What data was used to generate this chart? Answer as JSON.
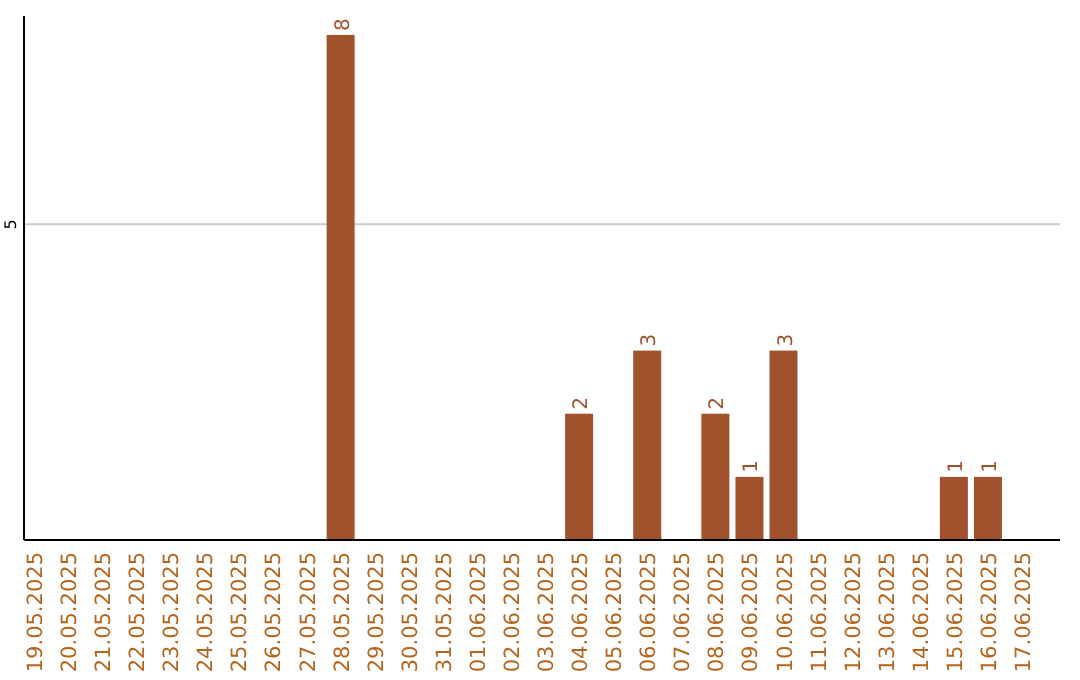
{
  "chart_data": {
    "type": "bar",
    "categories": [
      "19.05.2025",
      "20.05.2025",
      "21.05.2025",
      "22.05.2025",
      "23.05.2025",
      "24.05.2025",
      "25.05.2025",
      "26.05.2025",
      "27.05.2025",
      "28.05.2025",
      "29.05.2025",
      "30.05.2025",
      "31.05.2025",
      "01.06.2025",
      "02.06.2025",
      "03.06.2025",
      "04.06.2025",
      "05.06.2025",
      "06.06.2025",
      "07.06.2025",
      "08.06.2025",
      "09.06.2025",
      "10.06.2025",
      "11.06.2025",
      "12.06.2025",
      "13.06.2025",
      "14.06.2025",
      "15.06.2025",
      "16.06.2025",
      "17.06.2025"
    ],
    "values": [
      0,
      0,
      0,
      0,
      0,
      0,
      0,
      0,
      0,
      8,
      0,
      0,
      0,
      0,
      0,
      0,
      2,
      0,
      3,
      0,
      2,
      1,
      3,
      0,
      0,
      0,
      0,
      1,
      1,
      0
    ],
    "value_labels": [
      null,
      null,
      null,
      null,
      null,
      null,
      null,
      null,
      null,
      "8",
      null,
      null,
      null,
      null,
      null,
      null,
      "2",
      null,
      "3",
      null,
      "2",
      "1",
      "3",
      null,
      null,
      null,
      null,
      "1",
      "1",
      null
    ],
    "color": "#a0522d",
    "ylim": [
      0,
      8.3
    ],
    "yticks": [
      5
    ],
    "grid": "y"
  }
}
